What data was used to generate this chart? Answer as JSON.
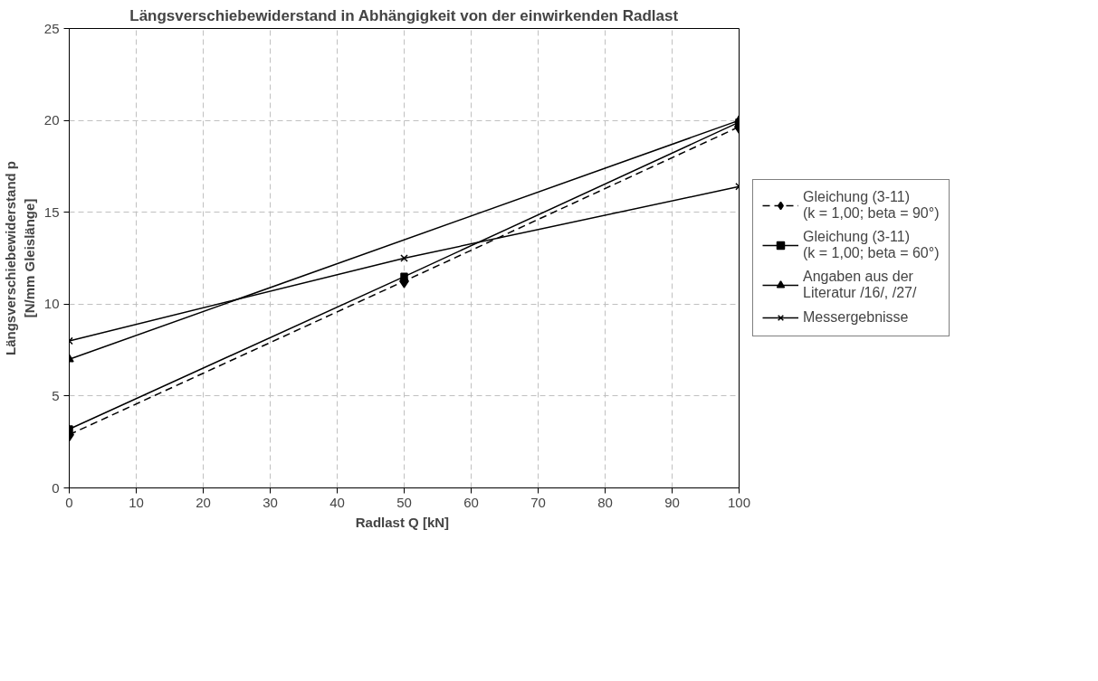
{
  "chart_data": {
    "type": "line",
    "title": "Längsverschiebewiderstand in Abhängigkeit von der einwirkenden Radlast",
    "xlabel": "Radlast Q  [kN]",
    "ylabel": "Längsverschiebewiderstand p\n[N/mm Gleislänge]",
    "x": [
      0,
      50,
      100
    ],
    "series": [
      {
        "name": "Gleichung (3-11)\n(k = 1,00; beta = 90°)",
        "color": "#000000",
        "values": [
          2.9,
          11.25,
          19.65
        ],
        "marker": "diamond",
        "line_style": "dashed"
      },
      {
        "name": "Gleichung (3-11)\n(k = 1,00; beta = 60°)",
        "color": "#000000",
        "values": [
          3.2,
          11.5,
          19.9
        ],
        "marker": "square",
        "line_style": "solid"
      },
      {
        "name": "Angaben aus der\nLiteratur /16/, /27/",
        "color": "#000000",
        "x": [
          0,
          100
        ],
        "values": [
          7,
          20
        ],
        "marker": "triangle",
        "line_style": "solid"
      },
      {
        "name": "Messergebnisse",
        "color": "#000000",
        "values": [
          8,
          12.5,
          16.4
        ],
        "marker": "cross",
        "line_style": "solid"
      }
    ],
    "xlim": [
      0,
      100
    ],
    "xticks": [
      0,
      10,
      20,
      30,
      40,
      50,
      60,
      70,
      80,
      90,
      100
    ],
    "ylim": [
      0,
      25
    ],
    "yticks": [
      0,
      5,
      10,
      15,
      20,
      25
    ],
    "grid": true,
    "legend": "right"
  }
}
